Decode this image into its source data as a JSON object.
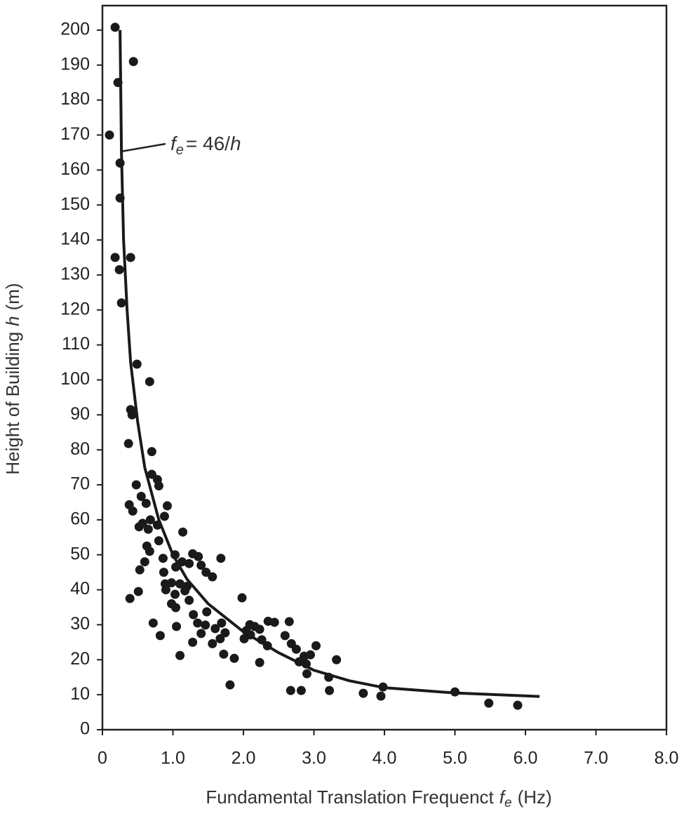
{
  "chart_data": {
    "type": "scatter",
    "xlabel": {
      "text": "Fundamental Translation Frequenct",
      "var": "f",
      "sub": "e",
      "unit": "(Hz)"
    },
    "ylabel": {
      "text": "Height of Building",
      "var": "h",
      "unit": "(m)"
    },
    "annotation": {
      "var": "f",
      "sub": "e",
      "text": "= 46/",
      "var2": "h"
    },
    "color": "#1a1a1a",
    "xlim": [
      0,
      8
    ],
    "ylim": [
      0,
      207
    ],
    "xticks": [
      0,
      {
        "value": 1,
        "label": "1.0"
      },
      {
        "value": 2,
        "label": "2.0"
      },
      {
        "value": 3,
        "label": "3.0"
      },
      {
        "value": 4,
        "label": "4.0"
      },
      {
        "value": 5,
        "label": "5.0"
      },
      {
        "value": 6,
        "label": "6.0"
      },
      {
        "value": 7,
        "label": "7.0"
      },
      {
        "value": 8,
        "label": "8.0"
      }
    ],
    "yticks": [
      0,
      10,
      20,
      30,
      40,
      50,
      60,
      70,
      80,
      90,
      100,
      110,
      120,
      130,
      140,
      150,
      160,
      170,
      180,
      190,
      200
    ],
    "points": {
      "x": [
        0.18,
        0.44,
        0.22,
        0.1,
        0.25,
        0.25,
        0.18,
        0.4,
        0.24,
        0.27,
        0.49,
        0.67,
        0.4,
        0.42,
        0.37,
        0.7,
        0.7,
        0.78,
        0.48,
        0.8,
        0.55,
        0.38,
        0.92,
        0.62,
        0.43,
        0.88,
        0.68,
        0.57,
        0.52,
        0.65,
        0.78,
        1.14,
        0.8,
        0.63,
        0.67,
        1.03,
        1.28,
        1.36,
        1.68,
        0.86,
        1.13,
        0.6,
        1.23,
        1.4,
        1.04,
        0.53,
        1.47,
        0.87,
        1.56,
        0.98,
        0.89,
        1.2,
        1.1,
        0.9,
        0.51,
        1.03,
        1.17,
        1.98,
        0.39,
        0.98,
        1.23,
        1.04,
        1.48,
        1.29,
        2.35,
        2.44,
        2.65,
        0.72,
        1.35,
        1.69,
        2.09,
        2.16,
        1.46,
        1.05,
        1.6,
        2.23,
        2.04,
        1.74,
        1.4,
        2.1,
        0.82,
        2.59,
        2.01,
        1.67,
        2.26,
        1.28,
        1.56,
        2.68,
        3.03,
        2.34,
        2.75,
        1.72,
        1.1,
        2.95,
        2.86,
        1.87,
        3.32,
        2.79,
        2.89,
        2.23,
        3.21,
        2.9,
        1.81,
        3.98,
        3.22,
        2.67,
        2.82,
        3.7,
        3.95,
        5.0,
        5.48,
        5.89
      ],
      "y": [
        200.8,
        191,
        185,
        170,
        162,
        152,
        135,
        135,
        131.5,
        122,
        104.5,
        99.5,
        91.5,
        90,
        81.8,
        79.5,
        73,
        71.5,
        70,
        69.7,
        66.7,
        64.3,
        64,
        64.7,
        62.5,
        61,
        60,
        59,
        58,
        57.3,
        58.5,
        56.5,
        54,
        52.5,
        51,
        50,
        50.3,
        49.5,
        49,
        49,
        48,
        48,
        47.5,
        47,
        46.5,
        45.7,
        45,
        45,
        43.7,
        42,
        41.7,
        41,
        41.7,
        40,
        39.5,
        38.7,
        39.7,
        37.7,
        37.5,
        36,
        37,
        34.9,
        33.7,
        32.9,
        31,
        30.7,
        30.9,
        30.5,
        30.5,
        30.5,
        30,
        29.5,
        29.9,
        29.5,
        28.9,
        28.7,
        28.3,
        27.7,
        27.5,
        27.1,
        26.9,
        26.9,
        26,
        26,
        25.7,
        25,
        24.6,
        24.6,
        24,
        24,
        23,
        21.6,
        21.2,
        21.4,
        21,
        20.4,
        20,
        19.4,
        18.8,
        19.2,
        15,
        16,
        12.8,
        12.2,
        11.2,
        11.2,
        11.2,
        10.4,
        9.6,
        10.8,
        7.6,
        7
      ]
    },
    "curve": {
      "x": [
        0.25,
        0.27,
        0.3,
        0.35,
        0.4,
        0.5,
        0.6,
        0.8,
        1.0,
        1.2,
        1.5,
        2.0,
        2.5,
        3.0,
        3.5,
        4.0,
        5.0,
        6.2
      ],
      "y": [
        200,
        165,
        140,
        120,
        105,
        88,
        75,
        60,
        50,
        43,
        36,
        28,
        22,
        17,
        14,
        12,
        10.5,
        9.5
      ]
    }
  }
}
